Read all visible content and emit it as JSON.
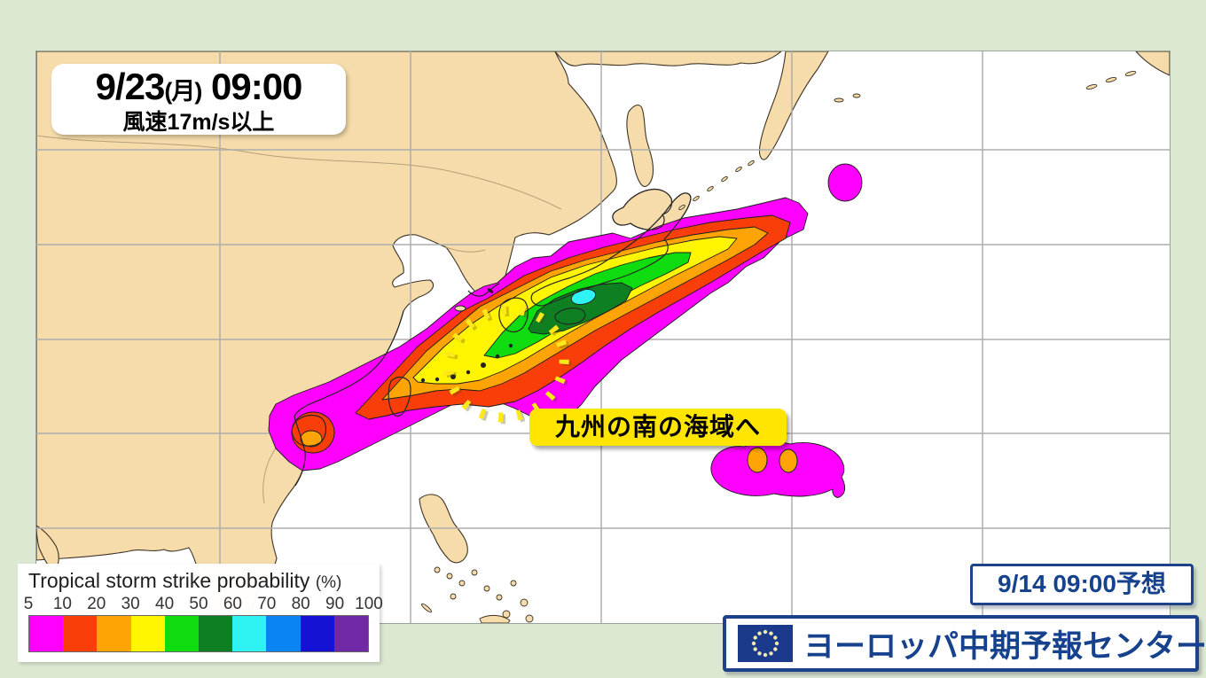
{
  "page": {
    "bg_color": "#dce8d2"
  },
  "header_box": {
    "date": "9/23",
    "weekday": "(月)",
    "time": "09:00",
    "subtitle": "風速17m/s以上"
  },
  "annotation": {
    "label": "九州の南の海域へ"
  },
  "forecast_time_box": {
    "label": "9/14 09:00予想"
  },
  "source_box": {
    "label": "ヨーロッパ中期予報センター",
    "icon": "eu-flag-icon"
  },
  "legend": {
    "title": "Tropical storm strike probability",
    "unit": "(%)",
    "ticks": [
      "5",
      "10",
      "20",
      "30",
      "40",
      "50",
      "60",
      "70",
      "80",
      "90",
      "100"
    ],
    "colors": [
      "#FF00FF",
      "#FA3E09",
      "#FFA405",
      "#FFF500",
      "#0EDC0E",
      "#0E8021",
      "#2FF3F3",
      "#0A84F0",
      "#1512D6",
      "#7229A8"
    ]
  },
  "colors": {
    "navy": "#16418c",
    "label_yellow": "#ffe500",
    "dashed_circle_yellow": "#ffe81a",
    "land": "#f5dcaa",
    "ocean": "#ffffff",
    "frame_green": "#dce8d2"
  },
  "map": {
    "type": "probability_contour_map",
    "region": "East Asia / Northwest Pacific",
    "levels_percent": [
      5,
      10,
      20,
      30,
      40,
      50,
      60,
      70,
      80,
      90,
      100
    ],
    "max_level_shown_percent": 60,
    "description": "Tropical storm strike probability (wind 17 m/s or more) contour band stretching from the South China Sea across Okinawa and mainland Japan into the Northwest Pacific"
  }
}
